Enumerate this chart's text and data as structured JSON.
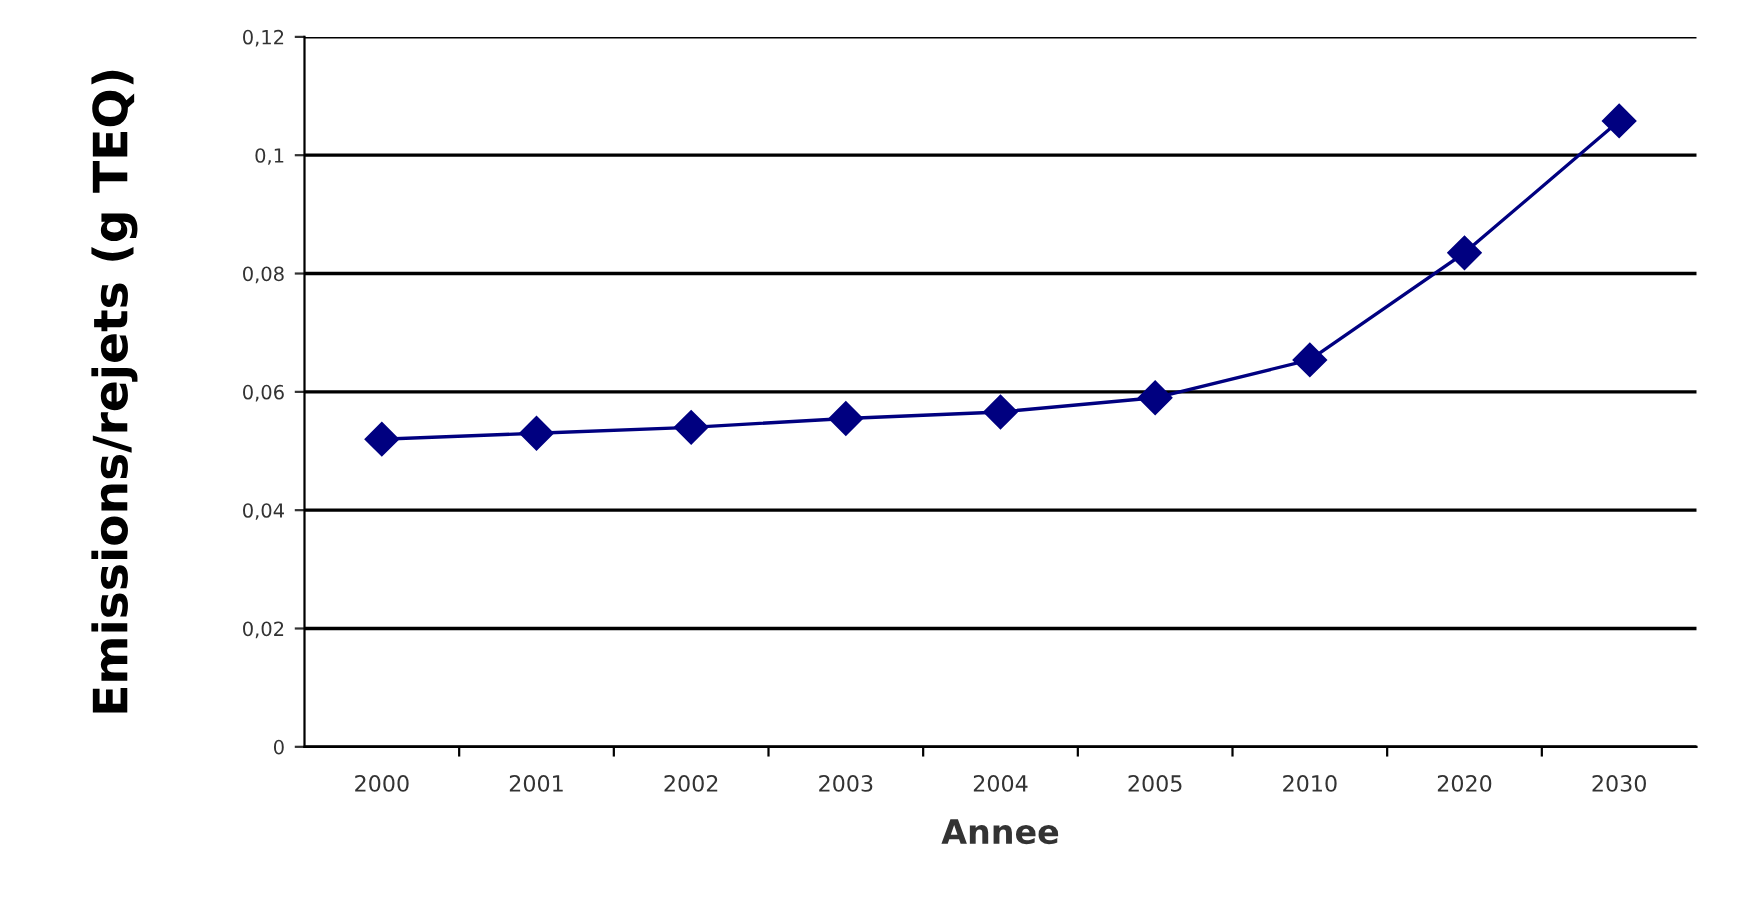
{
  "chart_data": {
    "type": "line",
    "xlabel": "Annee",
    "ylabel": "Emissions/rejets (g TEQ)",
    "categories": [
      "2000",
      "2001",
      "2002",
      "2003",
      "2004",
      "2005",
      "2010",
      "2020",
      "2030"
    ],
    "series": [
      {
        "color": "#000080",
        "values": [
          0.052,
          0.053,
          0.054,
          0.0555,
          0.0566,
          0.059,
          0.0654,
          0.0835,
          0.1058
        ]
      }
    ],
    "ylim": [
      0,
      0.12
    ],
    "yticks": [
      0,
      {
        "value": 0.02,
        "label": "0,02"
      },
      {
        "value": 0.04,
        "label": "0,04"
      },
      {
        "value": 0.06,
        "label": "0,06"
      },
      {
        "value": 0.08,
        "label": "0,08"
      },
      {
        "value": 0.1,
        "label": "0,1"
      },
      {
        "value": 0.12,
        "label": "0,12"
      }
    ],
    "grid": "y",
    "marker": "diamond",
    "line_style": "solid"
  }
}
